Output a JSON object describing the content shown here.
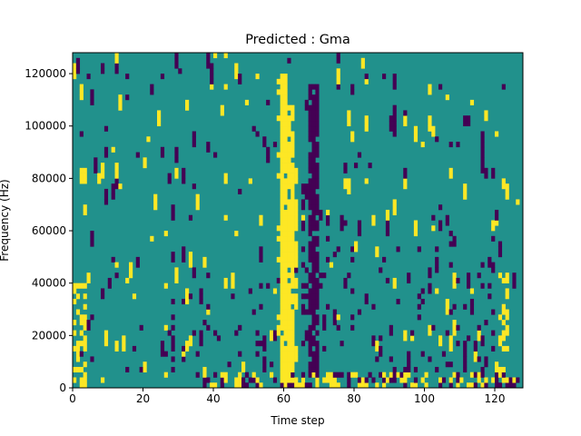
{
  "chart_data": {
    "type": "heatmap",
    "title": "Predicted : Gma",
    "xlabel": "Time step",
    "ylabel": "Frequency (Hz)",
    "xlim": [
      0,
      128
    ],
    "ylim": [
      0,
      128000
    ],
    "x_ticks": [
      0,
      20,
      40,
      60,
      80,
      100,
      120
    ],
    "y_ticks": [
      0,
      20000,
      40000,
      60000,
      80000,
      100000,
      120000
    ],
    "x_tick_labels": [
      "0",
      "20",
      "40",
      "60",
      "80",
      "100",
      "120"
    ],
    "y_tick_labels": [
      "0",
      "20000",
      "40000",
      "60000",
      "80000",
      "100000",
      "120000"
    ],
    "levels": [
      -1,
      0,
      1
    ],
    "colors": {
      "-1": "#440154",
      "0": "#21918c",
      "1": "#fde725"
    },
    "grid": false,
    "n_time_steps": 128,
    "n_freq_bins": 64,
    "seed": 7,
    "features": [
      {
        "value": 1,
        "t_from": 59,
        "t_to": 61,
        "bin_from": 0,
        "bin_to": 60,
        "density": 0.96
      },
      {
        "value": 1,
        "t_from": 61,
        "t_to": 63,
        "bin_from": 0,
        "bin_to": 54,
        "density": 0.9
      },
      {
        "value": 1,
        "t_from": 62,
        "t_to": 64,
        "bin_from": 14,
        "bin_to": 42,
        "density": 0.55
      },
      {
        "value": -1,
        "t_from": 67,
        "t_to": 70,
        "bin_from": 2,
        "bin_to": 58,
        "density": 0.85
      },
      {
        "value": -1,
        "t_from": 65,
        "t_to": 67,
        "bin_from": 8,
        "bin_to": 40,
        "density": 0.35
      },
      {
        "value": 1,
        "t_from": 58,
        "t_to": 59,
        "bin_from": 0,
        "bin_to": 64,
        "density": 0.25
      },
      {
        "value": 1,
        "t_from": 0,
        "t_to": 4,
        "bin_from": 0,
        "bin_to": 20,
        "density": 0.45
      },
      {
        "value": 1,
        "t_from": 121,
        "t_to": 124,
        "bin_from": 0,
        "bin_to": 22,
        "density": 0.35
      },
      {
        "value": 1,
        "t_from": 39,
        "t_to": 128,
        "bin_from": 0,
        "bin_to": 3,
        "density": 0.28
      },
      {
        "value": -1,
        "t_from": 39,
        "t_to": 128,
        "bin_from": 0,
        "bin_to": 3,
        "density": 0.2
      },
      {
        "value": -1,
        "t_from": 24,
        "t_to": 58,
        "bin_from": 0,
        "bin_to": 20,
        "density": 0.06
      },
      {
        "value": -1,
        "t_from": 70,
        "t_to": 120,
        "bin_from": 0,
        "bin_to": 30,
        "density": 0.06
      }
    ],
    "background": {
      "value": 0,
      "yellow_density": 0.018,
      "purple_density": 0.018
    }
  }
}
